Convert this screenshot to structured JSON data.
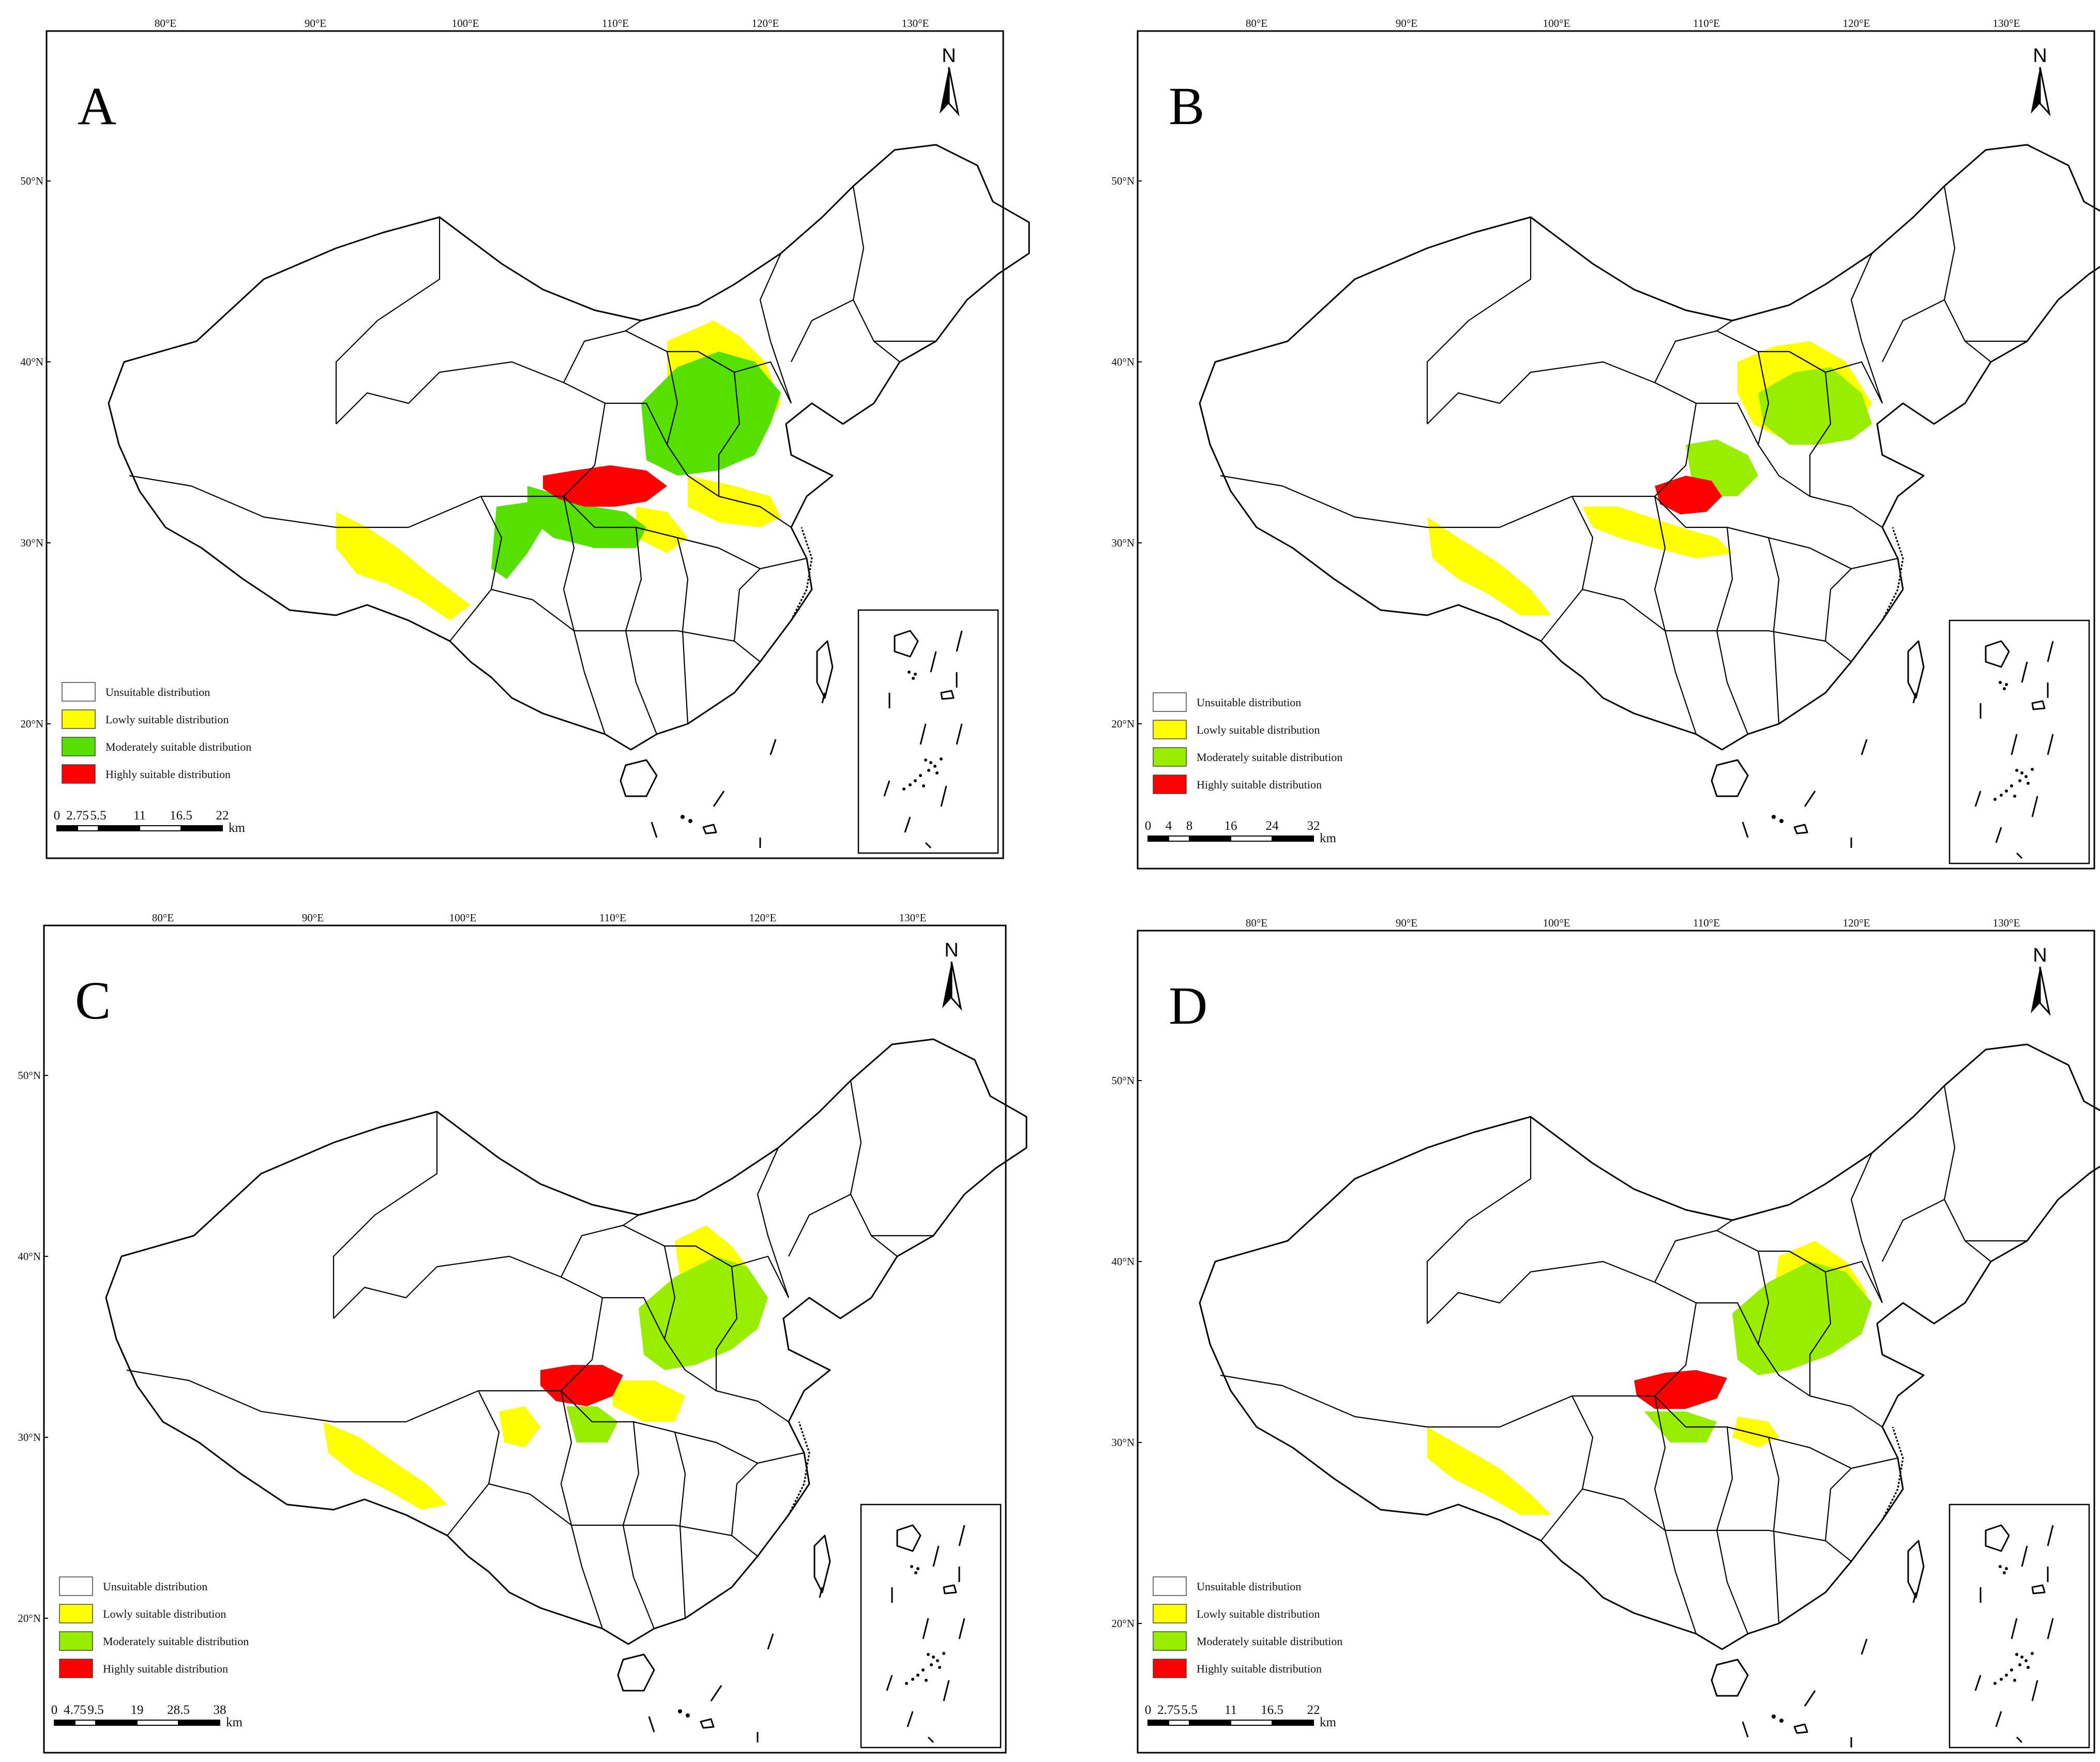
{
  "figure": {
    "colors": {
      "unsuitable": "#ffffff",
      "lowly": "#ffff00",
      "moderately_green": "#55e000",
      "moderately_lime": "#99ee00",
      "highly": "#ff0000",
      "ink": "#000000"
    },
    "panels": [
      {
        "label": "A",
        "north": "N",
        "lon_ticks": [
          "80°E",
          "90°E",
          "100°E",
          "110°E",
          "120°E",
          "130°E"
        ],
        "lat_ticks": [
          "50°N",
          "40°N",
          "30°N",
          "20°N"
        ],
        "legend": [
          {
            "label": "Unsuitable distribution",
            "color": "#ffffff"
          },
          {
            "label": "Lowly suitable distribution",
            "color": "#ffff00"
          },
          {
            "label": "Moderately suitable distribution",
            "color": "#55e000"
          },
          {
            "label": "Highly suitable distribution",
            "color": "#ff0000"
          }
        ],
        "scale": {
          "ticks": [
            "0",
            "2.75",
            "5.5",
            "11",
            "16.5",
            "22"
          ],
          "unit": "km"
        }
      },
      {
        "label": "B",
        "north": "N",
        "lon_ticks": [
          "80°E",
          "90°E",
          "100°E",
          "110°E",
          "120°E",
          "130°E"
        ],
        "lat_ticks": [
          "50°N",
          "40°N",
          "30°N",
          "20°N"
        ],
        "legend": [
          {
            "label": "Unsuitable distribution",
            "color": "#ffffff"
          },
          {
            "label": "Lowly suitable distribution",
            "color": "#ffff00"
          },
          {
            "label": "Moderately suitable distribution",
            "color": "#99ee00"
          },
          {
            "label": "Highly suitable distribution",
            "color": "#ff0000"
          }
        ],
        "scale": {
          "ticks": [
            "0",
            "4",
            "8",
            "16",
            "24",
            "32"
          ],
          "unit": "km"
        }
      },
      {
        "label": "C",
        "north": "N",
        "lon_ticks": [
          "80°E",
          "90°E",
          "100°E",
          "110°E",
          "120°E",
          "130°E"
        ],
        "lat_ticks": [
          "50°N",
          "40°N",
          "30°N",
          "20°N"
        ],
        "legend": [
          {
            "label": "Unsuitable distribution",
            "color": "#ffffff"
          },
          {
            "label": "Lowly suitable distribution",
            "color": "#ffff00"
          },
          {
            "label": "Moderately suitable distribution",
            "color": "#99ee00"
          },
          {
            "label": "Highly suitable distribution",
            "color": "#ff0000"
          }
        ],
        "scale": {
          "ticks": [
            "0",
            "4.75",
            "9.5",
            "19",
            "28.5",
            "38"
          ],
          "unit": "km"
        }
      },
      {
        "label": "D",
        "north": "N",
        "lon_ticks": [
          "80°E",
          "90°E",
          "100°E",
          "110°E",
          "120°E",
          "130°E"
        ],
        "lat_ticks": [
          "50°N",
          "40°N",
          "30°N",
          "20°N"
        ],
        "legend": [
          {
            "label": "Unsuitable distribution",
            "color": "#ffffff"
          },
          {
            "label": "Lowly suitable distribution",
            "color": "#ffff00"
          },
          {
            "label": "Moderately suitable distribution",
            "color": "#99ee00"
          },
          {
            "label": "Highly suitable distribution",
            "color": "#ff0000"
          }
        ],
        "scale": {
          "ticks": [
            "0",
            "2.75",
            "5.5",
            "11",
            "16.5",
            "22"
          ],
          "unit": "km"
        }
      }
    ]
  }
}
